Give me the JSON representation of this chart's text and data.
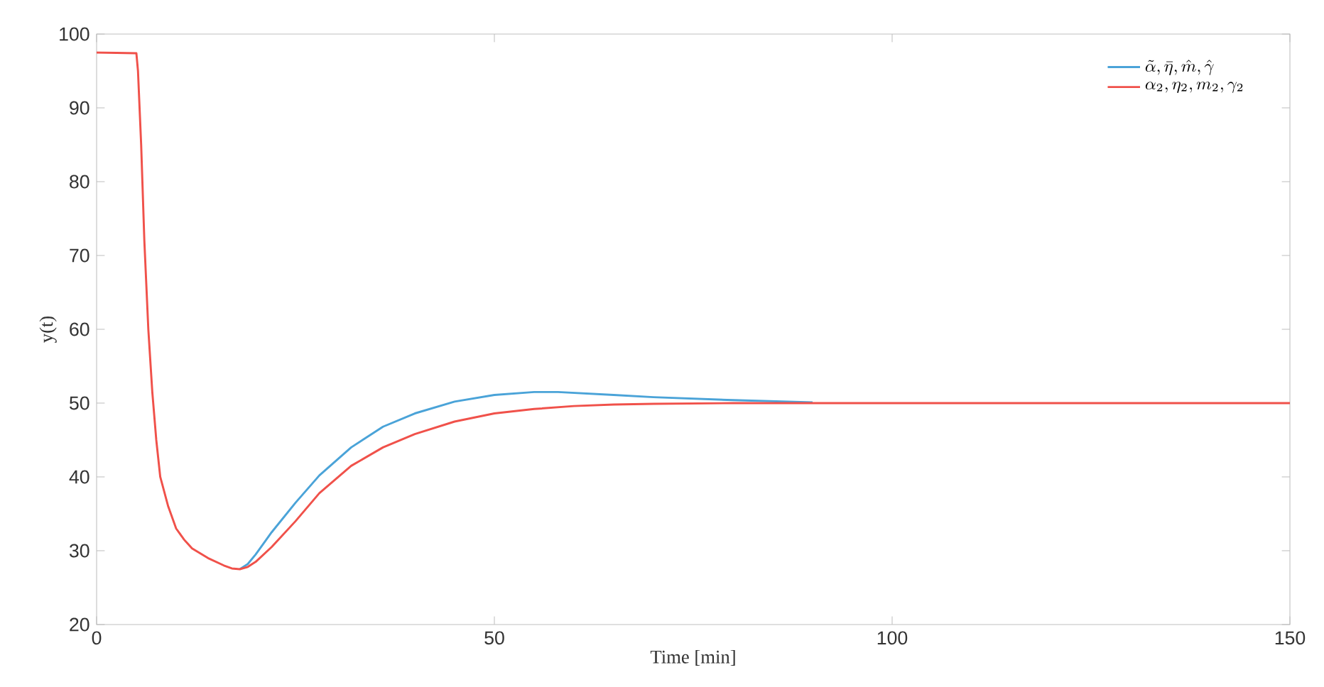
{
  "chart_data": {
    "type": "line",
    "xlabel": "Time [min]",
    "ylabel": "y(t)",
    "xlim": [
      0,
      150
    ],
    "ylim": [
      20,
      100
    ],
    "xticks": [
      0,
      50,
      100,
      150
    ],
    "yticks": [
      20,
      30,
      40,
      50,
      60,
      70,
      80,
      90,
      100
    ],
    "legend": "top right",
    "grid": false,
    "marker": "none",
    "line_style": "solid",
    "series": [
      {
        "name": "\\tilde{\\alpha}, \\bar{\\eta}, \\hat{m}, \\hat{\\gamma}",
        "color": "#4aa3d8",
        "x": [
          18,
          19,
          20,
          22,
          25,
          28,
          32,
          36,
          40,
          45,
          50,
          55,
          58,
          65,
          70,
          80,
          90
        ],
        "values": [
          27.5,
          28.2,
          29.5,
          32.5,
          36.5,
          40.2,
          44,
          46.8,
          48.6,
          50.2,
          51.1,
          51.5,
          51.5,
          51.1,
          50.8,
          50.4,
          50.1
        ]
      },
      {
        "name": "\\alpha_2, \\eta_2, m_2, \\gamma_2",
        "color": "#f0514a",
        "x": [
          0,
          5,
          5.2,
          5.6,
          6,
          6.5,
          7,
          7.5,
          8,
          9,
          10,
          11,
          12,
          14,
          16,
          17,
          18,
          19,
          20,
          22,
          25,
          28,
          32,
          36,
          40,
          45,
          50,
          55,
          60,
          65,
          70,
          80,
          100,
          150
        ],
        "values": [
          97.5,
          97.4,
          95,
          85,
          72,
          60,
          51.5,
          45,
          40,
          36,
          33,
          31.5,
          30.3,
          29,
          28,
          27.6,
          27.5,
          27.8,
          28.5,
          30.5,
          34,
          37.8,
          41.5,
          44,
          45.8,
          47.5,
          48.6,
          49.2,
          49.6,
          49.8,
          49.9,
          50,
          50,
          50
        ]
      }
    ]
  }
}
